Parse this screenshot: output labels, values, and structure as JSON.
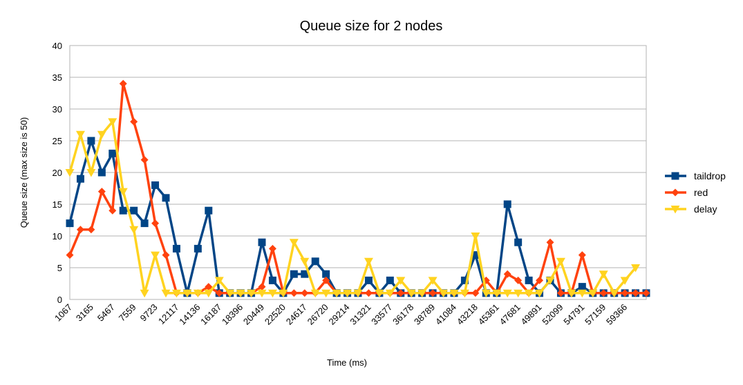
{
  "chart_data": {
    "type": "line",
    "title": "Queue size for 2 nodes",
    "xlabel": "Time (ms)",
    "ylabel": "Queue size (max size is 50)",
    "ylim": [
      0,
      40
    ],
    "yticks": [
      0,
      5,
      10,
      15,
      20,
      25,
      30,
      35,
      40
    ],
    "grid": true,
    "legend": "right",
    "x_tick_labels": [
      "1067",
      "3165",
      "5467",
      "7559",
      "9723",
      "12117",
      "14136",
      "16187",
      "18396",
      "20449",
      "22520",
      "24617",
      "26720",
      "29214",
      "31321",
      "33577",
      "36178",
      "38789",
      "41084",
      "43218",
      "45361",
      "47681",
      "49891",
      "52099",
      "54791",
      "57159",
      "59366"
    ],
    "series": [
      {
        "name": "taildrop",
        "color": "#004586",
        "marker": "square",
        "values": [
          12,
          19,
          25,
          20,
          23,
          14,
          14,
          12,
          18,
          16,
          8,
          1,
          8,
          14,
          1,
          1,
          1,
          1,
          9,
          3,
          1,
          4,
          4,
          6,
          4,
          1,
          1,
          1,
          3,
          1,
          3,
          1,
          1,
          1,
          1,
          1,
          1,
          3,
          7,
          1,
          1,
          15,
          9,
          3,
          1,
          3,
          1,
          1,
          2,
          1,
          1,
          1,
          1,
          1,
          1
        ]
      },
      {
        "name": "red",
        "color": "#ff420e",
        "marker": "diamond",
        "values": [
          7,
          11,
          11,
          17,
          14,
          34,
          28,
          22,
          12,
          7,
          1,
          1,
          1,
          2,
          1,
          1,
          1,
          1,
          2,
          8,
          1,
          1,
          1,
          1,
          3,
          1,
          1,
          1,
          1,
          1,
          1,
          1,
          1,
          1,
          1,
          1,
          1,
          1,
          1,
          3,
          1,
          4,
          3,
          1,
          3,
          9,
          1,
          1,
          7,
          1,
          1,
          1,
          1,
          1,
          1
        ]
      },
      {
        "name": "delay",
        "color": "#ffd320",
        "marker": "triangle-down",
        "values": [
          20,
          26,
          20,
          26,
          28,
          17,
          11,
          1,
          7,
          1,
          1,
          1,
          1,
          1,
          3,
          1,
          1,
          1,
          1,
          1,
          1,
          9,
          6,
          1,
          1,
          1,
          1,
          1,
          6,
          1,
          1,
          3,
          1,
          1,
          3,
          1,
          1,
          1,
          10,
          1,
          1,
          1,
          1,
          1,
          1,
          3,
          6,
          1,
          1,
          1,
          4,
          1,
          3,
          5
        ]
      }
    ]
  }
}
